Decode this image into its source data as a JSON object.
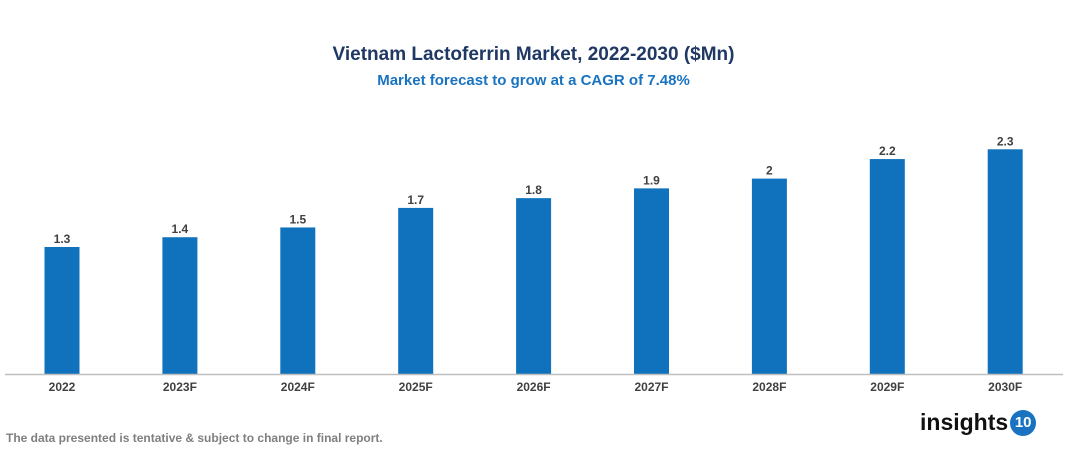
{
  "chart_data": {
    "type": "bar",
    "title": "Vietnam Lactoferrin Market, 2022-2030 ($Mn)",
    "subtitle": "Market forecast to grow at a CAGR of 7.48%",
    "categories": [
      "2022",
      "2023F",
      "2024F",
      "2025F",
      "2026F",
      "2027F",
      "2028F",
      "2029F",
      "2030F"
    ],
    "values": [
      1.3,
      1.4,
      1.5,
      1.7,
      1.8,
      1.9,
      2,
      2.2,
      2.3
    ],
    "data_labels": [
      "1.3",
      "1.4",
      "1.5",
      "1.7",
      "1.8",
      "1.9",
      "2",
      "2.2",
      "2.3"
    ],
    "xlabel": "",
    "ylabel": "",
    "ylim": [
      0,
      2.6
    ],
    "grid": false,
    "legend": "none",
    "bar_color": "#1072bd"
  },
  "footer": {
    "note": "The data presented is tentative & subject to change in final report.",
    "logo_text": "insights",
    "logo_number": "10"
  }
}
